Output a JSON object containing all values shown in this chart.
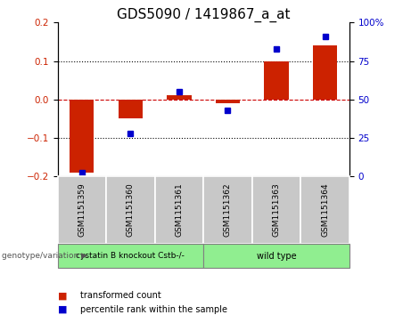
{
  "title": "GDS5090 / 1419867_a_at",
  "samples": [
    "GSM1151359",
    "GSM1151360",
    "GSM1151361",
    "GSM1151362",
    "GSM1151363",
    "GSM1151364"
  ],
  "red_values": [
    -0.19,
    -0.05,
    0.01,
    -0.01,
    0.1,
    0.14
  ],
  "blue_values": [
    2,
    28,
    55,
    43,
    83,
    91
  ],
  "ylim_left": [
    -0.2,
    0.2
  ],
  "ylim_right": [
    0,
    100
  ],
  "yticks_left": [
    -0.2,
    -0.1,
    0,
    0.1,
    0.2
  ],
  "yticks_right": [
    0,
    25,
    50,
    75,
    100
  ],
  "group_label": "genotype/variation",
  "group1_label": "cystatin B knockout Cstb-/-",
  "group2_label": "wild type",
  "legend_red": "transformed count",
  "legend_blue": "percentile rank within the sample",
  "bar_color": "#CC2200",
  "dot_color": "#0000CC",
  "bg_color": "#FFFFFF",
  "plot_bg": "#FFFFFF",
  "zero_line_color": "#CC0000",
  "grid_color": "#000000",
  "bar_width": 0.5,
  "title_fontsize": 11,
  "tick_fontsize": 7.5,
  "sample_fontsize": 6.5,
  "group_color": "#90EE90",
  "sample_box_color": "#C8C8C8"
}
